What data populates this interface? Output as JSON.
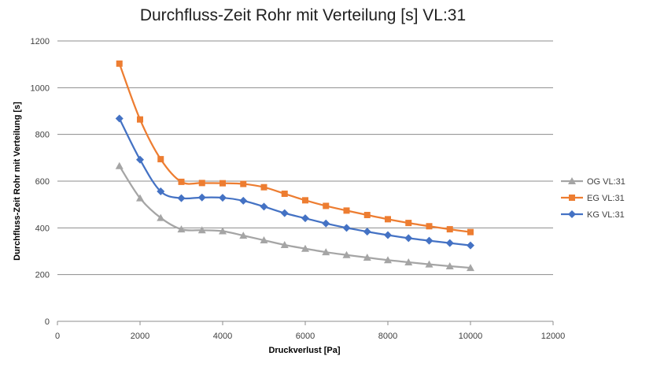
{
  "chart_data": {
    "type": "line",
    "title": "Durchfluss-Zeit Rohr mit Verteilung [s] VL:31",
    "xlabel": "Druckverlust [Pa]",
    "ylabel": "Durchfluss-Zeit  Rohr mit Verteilung [s]",
    "xlim": [
      0,
      12000
    ],
    "ylim": [
      0,
      1200
    ],
    "xticks": [
      0,
      2000,
      4000,
      6000,
      8000,
      10000,
      12000
    ],
    "yticks": [
      0,
      200,
      400,
      600,
      800,
      1000,
      1200
    ],
    "grid": "horizontal",
    "legend_position": "right",
    "x": [
      1500,
      2000,
      2500,
      3000,
      3500,
      4000,
      4500,
      5000,
      5500,
      6000,
      6500,
      7000,
      7500,
      8000,
      8500,
      9000,
      9500,
      10000
    ],
    "series": [
      {
        "name": "OG VL:31",
        "color": "#a5a5a5",
        "marker": "triangle",
        "values": [
          665,
          527,
          443,
          394,
          390,
          386,
          367,
          347,
          327,
          311,
          296,
          284,
          273,
          262,
          253,
          244,
          236,
          229
        ]
      },
      {
        "name": "EG VL:31",
        "color": "#ed7d31",
        "marker": "square",
        "values": [
          1103,
          864,
          694,
          597,
          592,
          591,
          588,
          574,
          546,
          518,
          494,
          474,
          455,
          437,
          421,
          407,
          394,
          382
        ]
      },
      {
        "name": "KG VL:31",
        "color": "#4472c4",
        "marker": "diamond",
        "values": [
          868,
          692,
          556,
          527,
          530,
          529,
          516,
          491,
          463,
          441,
          419,
          400,
          384,
          369,
          356,
          345,
          335,
          325
        ]
      }
    ]
  }
}
